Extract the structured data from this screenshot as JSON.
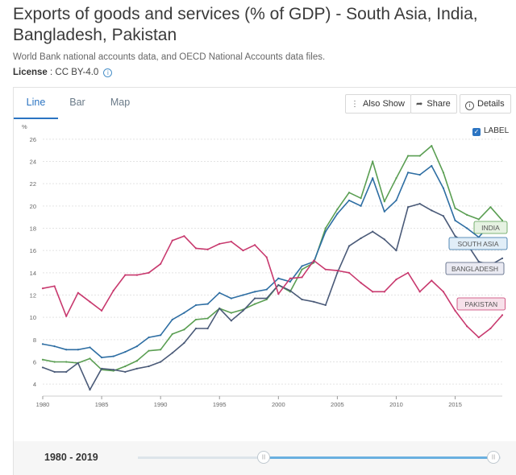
{
  "header": {
    "title": "Exports of goods and services (% of GDP) - South Asia, India, Bangladesh, Pakistan",
    "subtitle": "World Bank national accounts data, and OECD National Accounts data files.",
    "license_label": "License",
    "license_value": " : CC BY-4.0",
    "info_icon": "info-icon"
  },
  "tabs": [
    {
      "label": "Line",
      "active": true
    },
    {
      "label": "Bar",
      "active": false
    },
    {
      "label": "Map",
      "active": false
    }
  ],
  "toolbar": {
    "also_show": "Also Show",
    "share": "Share",
    "details": "Details"
  },
  "label_toggle": "LABEL",
  "footer": {
    "range": "1980 - 2019",
    "handle_glyph": "|||"
  },
  "chart_data": {
    "type": "line",
    "ylabel": "%",
    "ylim": [
      3,
      27
    ],
    "yticks": [
      4,
      6,
      8,
      10,
      12,
      14,
      16,
      18,
      20,
      22,
      24,
      26
    ],
    "xlim": [
      1980,
      2019
    ],
    "xticks": [
      1980,
      1985,
      1990,
      1995,
      2000,
      2005,
      2010,
      2015
    ],
    "grid": true,
    "legend": "inline-labels-right",
    "x": [
      1980,
      1981,
      1982,
      1983,
      1984,
      1985,
      1986,
      1987,
      1988,
      1989,
      1990,
      1991,
      1992,
      1993,
      1994,
      1995,
      1996,
      1997,
      1998,
      1999,
      2000,
      2001,
      2002,
      2003,
      2004,
      2005,
      2006,
      2007,
      2008,
      2009,
      2010,
      2011,
      2012,
      2013,
      2014,
      2015,
      2016,
      2017,
      2018,
      2019
    ],
    "series": [
      {
        "name": "INDIA",
        "color": "#5a9e52",
        "label_bg": "#e6f2e2",
        "values": [
          6.2,
          6.0,
          6.0,
          5.9,
          6.3,
          5.3,
          5.2,
          5.6,
          6.1,
          7.0,
          7.1,
          8.5,
          8.9,
          9.8,
          9.9,
          10.8,
          10.4,
          10.7,
          11.2,
          11.6,
          12.9,
          12.3,
          14.3,
          14.9,
          18.0,
          19.7,
          21.2,
          20.7,
          24.0,
          20.4,
          22.5,
          24.5,
          24.5,
          25.4,
          23.0,
          19.8,
          19.2,
          18.8,
          19.9,
          18.7
        ]
      },
      {
        "name": "SOUTH ASIA",
        "color": "#2e6ea3",
        "label_bg": "#e1eef8",
        "values": [
          7.6,
          7.4,
          7.1,
          7.1,
          7.3,
          6.4,
          6.5,
          6.9,
          7.4,
          8.2,
          8.4,
          9.8,
          10.4,
          11.1,
          11.2,
          12.2,
          11.7,
          12.0,
          12.3,
          12.5,
          13.5,
          13.2,
          14.6,
          15.0,
          17.7,
          19.3,
          20.5,
          20.0,
          22.5,
          19.5,
          20.5,
          23.0,
          22.8,
          23.6,
          21.6,
          18.7,
          18.0,
          17.2,
          18.4,
          17.8
        ]
      },
      {
        "name": "BANGLADESH",
        "color": "#4a5a78",
        "label_bg": "#eaeaf2",
        "values": [
          5.5,
          5.1,
          5.1,
          5.9,
          3.5,
          5.4,
          5.3,
          5.1,
          5.4,
          5.6,
          6.0,
          6.8,
          7.7,
          9.0,
          9.0,
          10.8,
          9.7,
          10.6,
          11.7,
          11.7,
          12.9,
          12.4,
          11.6,
          11.4,
          11.1,
          14.0,
          16.4,
          17.1,
          17.7,
          17.0,
          16.0,
          19.9,
          20.2,
          19.6,
          19.1,
          17.3,
          16.6,
          15.0,
          14.7,
          15.3
        ]
      },
      {
        "name": "PAKISTAN",
        "color": "#c8396e",
        "label_bg": "#f7e1ea",
        "values": [
          12.6,
          12.8,
          10.1,
          12.2,
          11.4,
          10.6,
          12.4,
          13.8,
          13.8,
          14.0,
          14.8,
          16.9,
          17.3,
          16.2,
          16.1,
          16.6,
          16.8,
          16.0,
          16.5,
          15.4,
          12.1,
          13.5,
          13.6,
          15.1,
          14.3,
          14.2,
          14.0,
          13.1,
          12.3,
          12.3,
          13.4,
          14.0,
          12.3,
          13.3,
          12.3,
          10.6,
          9.2,
          8.2,
          9.0,
          10.2
        ]
      }
    ]
  }
}
